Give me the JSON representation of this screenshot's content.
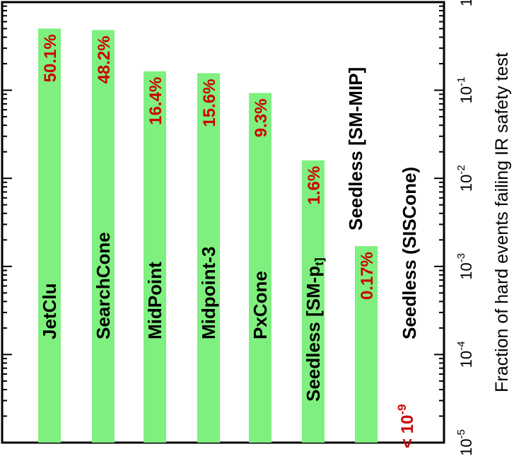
{
  "chart_data": {
    "type": "bar",
    "orientation": "rotated (figure shown rotated 90 degrees counter-clockwise)",
    "categories": [
      "JetClu",
      "SearchCone",
      "MidPoint",
      "Midpoint-3",
      "PxCone",
      "Seedless [SM-p",
      "Seedless (SISCone)"
    ],
    "category_subscripts": [
      "",
      "",
      "",
      "",
      "",
      "t]",
      "",
      ""
    ],
    "extra_labels": [
      "Seedless [SM-MIP]"
    ],
    "values": [
      0.501,
      0.482,
      0.164,
      0.156,
      0.093,
      0.016,
      0.0017
    ],
    "value_labels": [
      "50.1%",
      "48.2%",
      "16.4%",
      "15.6%",
      "9.3%",
      "1.6%",
      "0.17%"
    ],
    "special_label": {
      "prefix": "< 10",
      "exponent": "-9"
    },
    "ylabel": "Fraction of hard events failing IR safety test",
    "yscale": "log",
    "ylim": [
      1e-05,
      1
    ],
    "ytick_values": [
      1e-05,
      0.0001,
      0.001,
      0.01,
      0.1,
      1
    ],
    "ytick_labels": [
      {
        "base": "10",
        "exp": "-5"
      },
      {
        "base": "10",
        "exp": "-4"
      },
      {
        "base": "10",
        "exp": "-3"
      },
      {
        "base": "10",
        "exp": "-2"
      },
      {
        "base": "10",
        "exp": "-1"
      },
      {
        "base": "1",
        "exp": ""
      }
    ],
    "bar_color": "#7ff07f",
    "value_label_color": "#cc0000",
    "grid": false
  }
}
